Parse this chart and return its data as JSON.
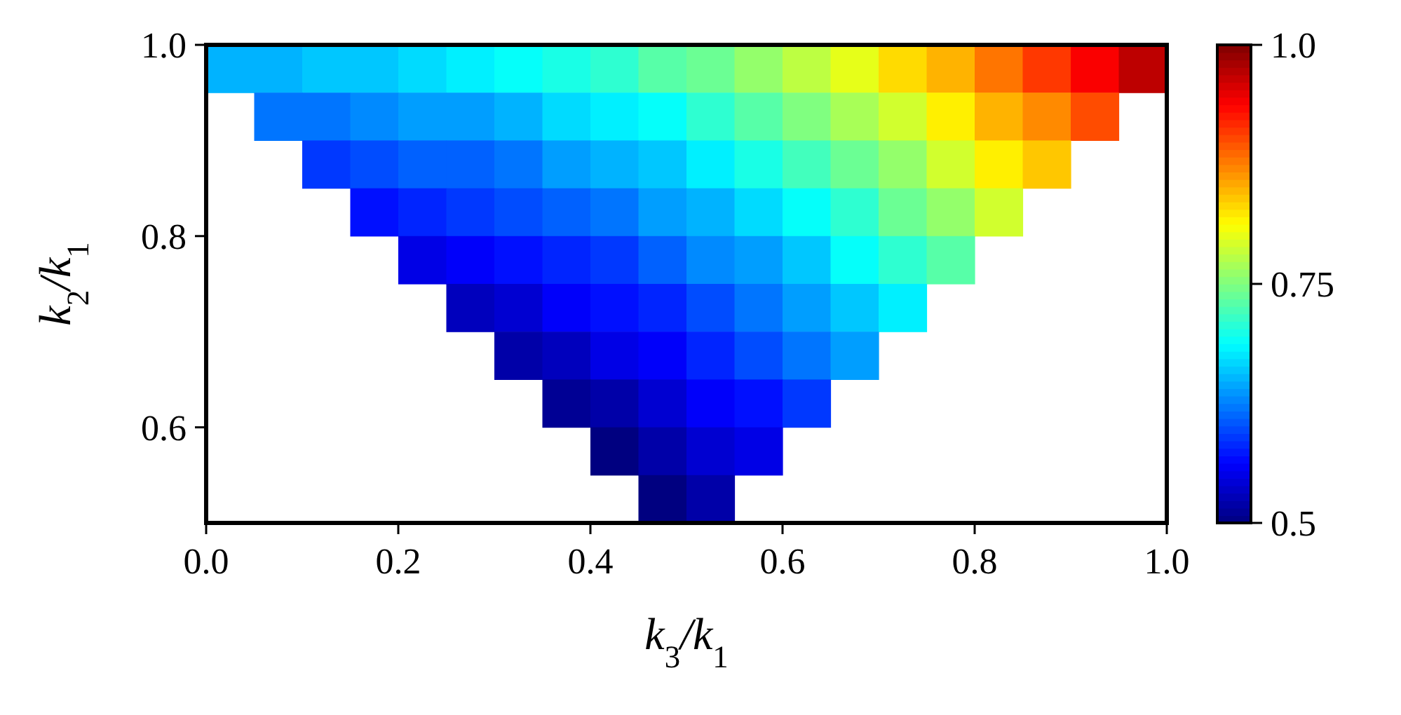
{
  "chart_data": {
    "type": "heatmap",
    "xlabel": "k$_{3}$/k$_{1}$",
    "ylabel": "k$_{2}$/k$_{1}$",
    "x": [
      0.025,
      0.075,
      0.125,
      0.175,
      0.225,
      0.275,
      0.325,
      0.375,
      0.425,
      0.475,
      0.525,
      0.575,
      0.625,
      0.675,
      0.725,
      0.775,
      0.825,
      0.875,
      0.925,
      0.975
    ],
    "y": [
      0.975,
      0.925,
      0.875,
      0.825,
      0.775,
      0.725,
      0.675,
      0.625,
      0.575,
      0.525
    ],
    "xlim": [
      0,
      1
    ],
    "xticks": [
      {
        "value": 0,
        "label": "0.0"
      },
      0.2,
      0.4,
      0.6,
      0.8,
      {
        "value": 1,
        "label": "1.0"
      }
    ],
    "ylim": [
      0.5,
      1
    ],
    "yticks": [
      0.6,
      0.8,
      {
        "value": 1,
        "label": "1.0"
      }
    ],
    "clim": [
      0.5,
      1
    ],
    "cticks": [
      0.5,
      0.75,
      {
        "value": 1,
        "label": "1.0"
      }
    ],
    "cells": [
      [
        0.65,
        0.65,
        0.66,
        0.66,
        0.67,
        0.68,
        0.69,
        0.7,
        0.71,
        0.73,
        0.74,
        0.76,
        0.78,
        0.8,
        0.83,
        0.85,
        0.88,
        0.91,
        0.94,
        0.97
      ],
      [
        null,
        0.62,
        0.62,
        0.63,
        0.64,
        0.64,
        0.65,
        0.67,
        0.68,
        0.69,
        0.71,
        0.73,
        0.75,
        0.77,
        0.79,
        0.82,
        0.85,
        0.87,
        0.9,
        null
      ],
      [
        null,
        null,
        0.59,
        0.6,
        0.61,
        0.61,
        0.62,
        0.64,
        0.65,
        0.66,
        0.68,
        0.7,
        0.72,
        0.74,
        0.76,
        0.79,
        0.82,
        0.84,
        null,
        null
      ],
      [
        null,
        null,
        null,
        0.57,
        0.58,
        0.59,
        0.6,
        0.61,
        0.62,
        0.64,
        0.65,
        0.67,
        0.69,
        0.71,
        0.74,
        0.76,
        0.79,
        null,
        null,
        null
      ],
      [
        null,
        null,
        null,
        null,
        0.55,
        0.56,
        0.57,
        0.58,
        0.59,
        0.61,
        0.63,
        0.64,
        0.66,
        0.69,
        0.71,
        0.73,
        null,
        null,
        null,
        null
      ],
      [
        null,
        null,
        null,
        null,
        null,
        0.53,
        0.54,
        0.56,
        0.57,
        0.58,
        0.6,
        0.62,
        0.64,
        0.66,
        0.68,
        null,
        null,
        null,
        null,
        null
      ],
      [
        null,
        null,
        null,
        null,
        null,
        null,
        0.52,
        0.53,
        0.55,
        0.56,
        0.58,
        0.6,
        0.62,
        0.64,
        null,
        null,
        null,
        null,
        null,
        null
      ],
      [
        null,
        null,
        null,
        null,
        null,
        null,
        null,
        0.51,
        0.52,
        0.54,
        0.56,
        0.57,
        0.59,
        null,
        null,
        null,
        null,
        null,
        null,
        null
      ],
      [
        null,
        null,
        null,
        null,
        null,
        null,
        null,
        null,
        0.5,
        0.52,
        0.54,
        0.55,
        null,
        null,
        null,
        null,
        null,
        null,
        null,
        null
      ],
      [
        null,
        null,
        null,
        null,
        null,
        null,
        null,
        null,
        null,
        0.5,
        0.52,
        null,
        null,
        null,
        null,
        null,
        null,
        null,
        null,
        null
      ]
    ]
  }
}
